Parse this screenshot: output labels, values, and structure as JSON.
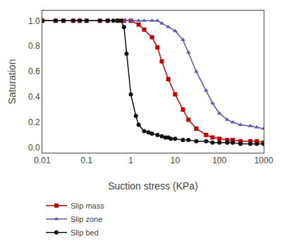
{
  "chart_data": {
    "type": "line",
    "xlabel": "Suction stress (KPa)",
    "ylabel": "Saturation",
    "log": "x",
    "xlim": [
      0.01,
      1000
    ],
    "xticks": [
      0.01,
      0.1,
      1,
      10,
      100,
      1000
    ],
    "ylim": [
      -0.04,
      1.08
    ],
    "yticks": [
      {
        "value": 0.0,
        "label": "0.0"
      },
      0.2,
      0.4,
      0.6,
      0.8,
      {
        "value": 1.0,
        "label": "1.0"
      }
    ],
    "grid": false,
    "legend": "below",
    "series": [
      {
        "name": "Slip mass",
        "color": "#cc0000",
        "marker": "square",
        "x": [
          0.01,
          0.02,
          0.03,
          0.05,
          0.07,
          0.1,
          0.2,
          0.3,
          0.5,
          0.7,
          1.0,
          1.5,
          2.0,
          3.0,
          4.0,
          5.0,
          7.0,
          10.0,
          15.0,
          20.0,
          30.0,
          50.0,
          70.0,
          100.0,
          150.0,
          200.0,
          300.0,
          500.0,
          700.0,
          1000.0
        ],
        "values": [
          1.0,
          1.0,
          1.0,
          1.0,
          1.0,
          1.0,
          1.0,
          1.0,
          1.0,
          1.0,
          1.0,
          0.97,
          0.93,
          0.87,
          0.79,
          0.68,
          0.54,
          0.42,
          0.3,
          0.22,
          0.15,
          0.1,
          0.08,
          0.07,
          0.06,
          0.06,
          0.05,
          0.05,
          0.05,
          0.04
        ]
      },
      {
        "name": "Slip zone",
        "color": "#5555bb",
        "marker": "triangle-up",
        "x": [
          0.01,
          0.02,
          0.03,
          0.05,
          0.07,
          0.1,
          0.2,
          0.3,
          0.5,
          0.7,
          1.0,
          1.5,
          2.0,
          3.0,
          4.0,
          5.0,
          7.0,
          10.0,
          15.0,
          20.0,
          30.0,
          50.0,
          70.0,
          100.0,
          150.0,
          200.0,
          300.0,
          500.0,
          700.0,
          1000.0
        ],
        "values": [
          1.0,
          1.0,
          1.0,
          1.0,
          1.0,
          1.0,
          1.0,
          1.0,
          1.0,
          1.0,
          1.0,
          1.0,
          1.0,
          1.0,
          1.0,
          0.98,
          0.95,
          0.92,
          0.85,
          0.75,
          0.6,
          0.45,
          0.35,
          0.27,
          0.22,
          0.2,
          0.18,
          0.17,
          0.16,
          0.15
        ]
      },
      {
        "name": "Slip bed",
        "color": "#111111",
        "marker": "circle",
        "x": [
          0.01,
          0.02,
          0.03,
          0.05,
          0.07,
          0.1,
          0.2,
          0.3,
          0.4,
          0.5,
          0.6,
          0.7,
          0.8,
          1.0,
          1.3,
          1.5,
          2.0,
          2.5,
          3.0,
          4.0,
          5.0,
          6.0,
          7.0,
          8.0,
          10.0,
          15.0,
          20.0,
          30.0,
          50.0,
          70.0,
          100.0,
          150.0,
          200.0,
          300.0,
          500.0,
          700.0,
          1000.0
        ],
        "values": [
          1.0,
          1.0,
          1.0,
          1.0,
          1.0,
          1.0,
          1.0,
          1.0,
          1.0,
          1.0,
          1.0,
          0.95,
          0.74,
          0.42,
          0.25,
          0.18,
          0.13,
          0.12,
          0.11,
          0.1,
          0.09,
          0.08,
          0.08,
          0.07,
          0.07,
          0.06,
          0.06,
          0.05,
          0.05,
          0.04,
          0.04,
          0.04,
          0.04,
          0.03,
          0.03,
          0.03,
          0.03
        ]
      }
    ]
  }
}
